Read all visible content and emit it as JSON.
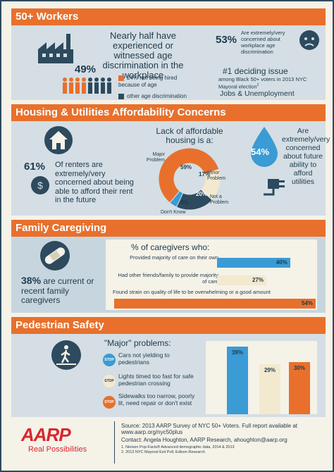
{
  "workers": {
    "header": "50+ Workers",
    "headline": "Nearly half have experienced or witnessed age discrimination in the workplace",
    "pct": "49%",
    "legend": [
      {
        "label": "24% not being hired because of age",
        "color": "#e8702c"
      },
      {
        "label": "other age discrimination",
        "color": "#2d4a5e"
      }
    ],
    "concern_pct": "53%",
    "concern_text": "Are extremely/very concerned about workplace age discrimination",
    "issue_title": "#1 deciding issue",
    "issue_text": "among Black 50+ voters in 2013 NYC Mayoral election",
    "issue_sup": "2",
    "issue_answer": "Jobs & Unemployment"
  },
  "housing": {
    "header": "Housing & Utilities Affordability Concerns",
    "renters_pct": "61%",
    "renters_text": "Of renters are extremely/very concerned about being able to afford their rent in the future",
    "chart_title": "Lack of affordable housing is a:",
    "chart_data": {
      "type": "pie",
      "title": "Lack of affordable housing is a:",
      "slices": [
        {
          "label": "Major Problem",
          "value": 59,
          "color": "#e8702c"
        },
        {
          "label": "Minor Problem",
          "value": 17,
          "color": "#f3e9cf"
        },
        {
          "label": "Not a Problem",
          "value": 20,
          "color": "#2d4a5e"
        },
        {
          "label": "Don't Know",
          "value": 4,
          "color": "#3a9bd5"
        }
      ]
    },
    "slice_labels": [
      "59%",
      "17%",
      "20%",
      "4%"
    ],
    "utilities_pct": "54%",
    "utilities_text": "Are extremely/very concerned about future ability to afford utilities"
  },
  "caregiving": {
    "header": "Family Caregiving",
    "pct": "38%",
    "pct_text": "are current or recent family caregivers",
    "chart_title": "% of caregivers who:",
    "chart_data": {
      "type": "bar",
      "categories": [
        "Provided majority of care on their own",
        "Had other friends/family to provide majority of care",
        "Found strain on quality of life to be overwhelming or a good amount"
      ],
      "values": [
        40,
        27,
        54
      ],
      "colors": [
        "#3a9bd5",
        "#f3e9cf",
        "#e8702c"
      ],
      "value_labels": [
        "40%",
        "27%",
        "54%"
      ],
      "xlim": [
        0,
        54
      ]
    }
  },
  "pedestrian": {
    "header": "Pedestrian Safety",
    "chart_title": "\"Major\" problems:",
    "stop_label": "STOP",
    "chart_data": {
      "type": "bar",
      "categories": [
        "Cars not yielding to pedestrians",
        "Lights timed too fast for safe pedestrian crossing",
        "Sidewalks too narrow, poorly lit, need repair or don't exist"
      ],
      "values": [
        39,
        29,
        30
      ],
      "colors": [
        "#3a9bd5",
        "#f3e9cf",
        "#e8702c"
      ],
      "value_labels": [
        "39%",
        "29%",
        "30%"
      ],
      "ylim": [
        0,
        39
      ]
    }
  },
  "footer": {
    "logo": "AARP",
    "tagline": "Real Possibilities",
    "source": "Source: 2013 AARP Survey of NYC 50+ Voters. Full report available at www.aarp.org/nyc50plus",
    "contact": "Contact: Angela Houghton, AARP Research, ahoughton@aarp.org",
    "note1": "1. Nielsen Pop-Facts® Advanced demographic data, 2014 & 2013",
    "note2": "2. 2013 NYC Mayoral Exit Poll, Edison Research"
  }
}
